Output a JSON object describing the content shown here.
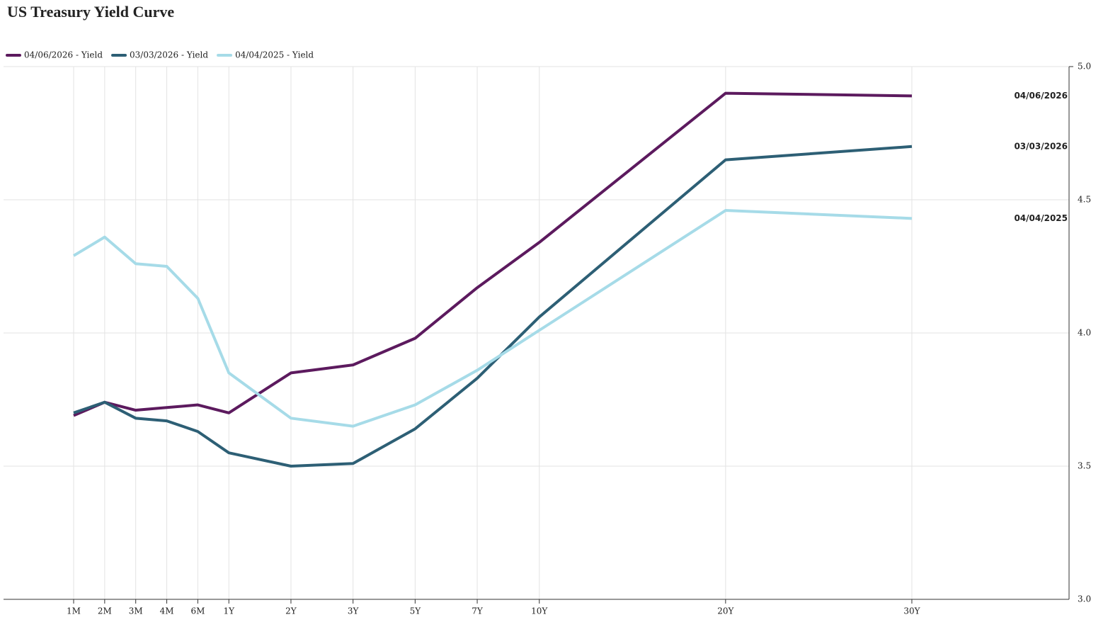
{
  "chart_data": {
    "type": "line",
    "title": "US Treasury Yield Curve",
    "categories": [
      "1M",
      "2M",
      "3M",
      "4M",
      "6M",
      "1Y",
      "2Y",
      "3Y",
      "5Y",
      "7Y",
      "10Y",
      "20Y",
      "30Y"
    ],
    "series": [
      {
        "name": "04/06/2026 - Yield",
        "end_label": "04/06/2026",
        "color": "#5c1a5e",
        "values": [
          3.69,
          3.74,
          3.71,
          3.72,
          3.73,
          3.7,
          3.85,
          3.88,
          3.98,
          4.17,
          4.34,
          4.9,
          4.89
        ]
      },
      {
        "name": "03/03/2026 - Yield",
        "end_label": "03/03/2026",
        "color": "#2d5f75",
        "values": [
          3.7,
          3.74,
          3.68,
          3.67,
          3.63,
          3.55,
          3.5,
          3.51,
          3.64,
          3.83,
          4.06,
          4.65,
          4.7
        ]
      },
      {
        "name": "04/04/2025 - Yield",
        "end_label": "04/04/2025",
        "color": "#a6dbe8",
        "values": [
          4.29,
          4.36,
          4.26,
          4.25,
          4.13,
          3.85,
          3.68,
          3.65,
          3.73,
          3.86,
          4.01,
          4.46,
          4.43
        ]
      }
    ],
    "ylim": [
      3.0,
      5.0
    ],
    "yticks": [
      {
        "value": 3.0,
        "label": "3.0"
      },
      {
        "value": 3.5,
        "label": "3.5"
      },
      {
        "value": 4.0,
        "label": "4.0"
      },
      {
        "value": 4.5,
        "label": "4.5"
      },
      {
        "value": 5.0,
        "label": "5.0"
      }
    ],
    "grid": true,
    "legend": "top-left"
  }
}
